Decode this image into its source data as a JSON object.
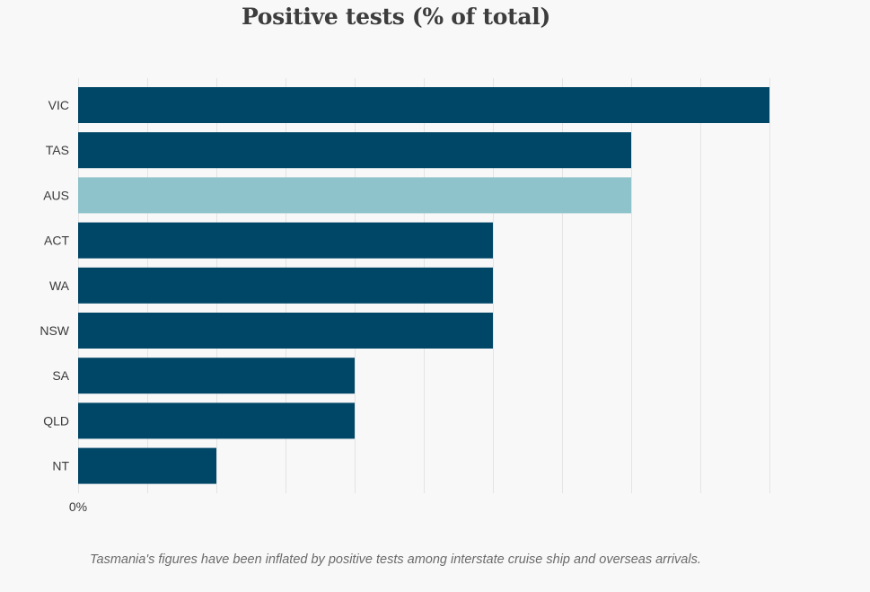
{
  "chart_data": {
    "type": "bar",
    "orientation": "horizontal",
    "title": "Positive tests (% of total)",
    "categories": [
      "VIC",
      "TAS",
      "AUS",
      "ACT",
      "WA",
      "NSW",
      "SA",
      "QLD",
      "NT"
    ],
    "values": [
      1.0,
      0.8,
      0.8,
      0.6,
      0.6,
      0.6,
      0.4,
      0.4,
      0.2
    ],
    "highlight_category": "AUS",
    "colors": {
      "default": "#004667",
      "highlight": "#8ec3cb",
      "grid": "#e4e4e4"
    },
    "xlim": [
      0,
      1.0
    ],
    "x_grid_step": 0.1,
    "x_tick_labels": [
      {
        "value": 0,
        "label": "0%"
      }
    ],
    "xlabel": "",
    "ylabel": "",
    "grid": true
  },
  "note": "Tasmania's figures have been inflated by positive tests among interstate cruise ship and overseas arrivals."
}
